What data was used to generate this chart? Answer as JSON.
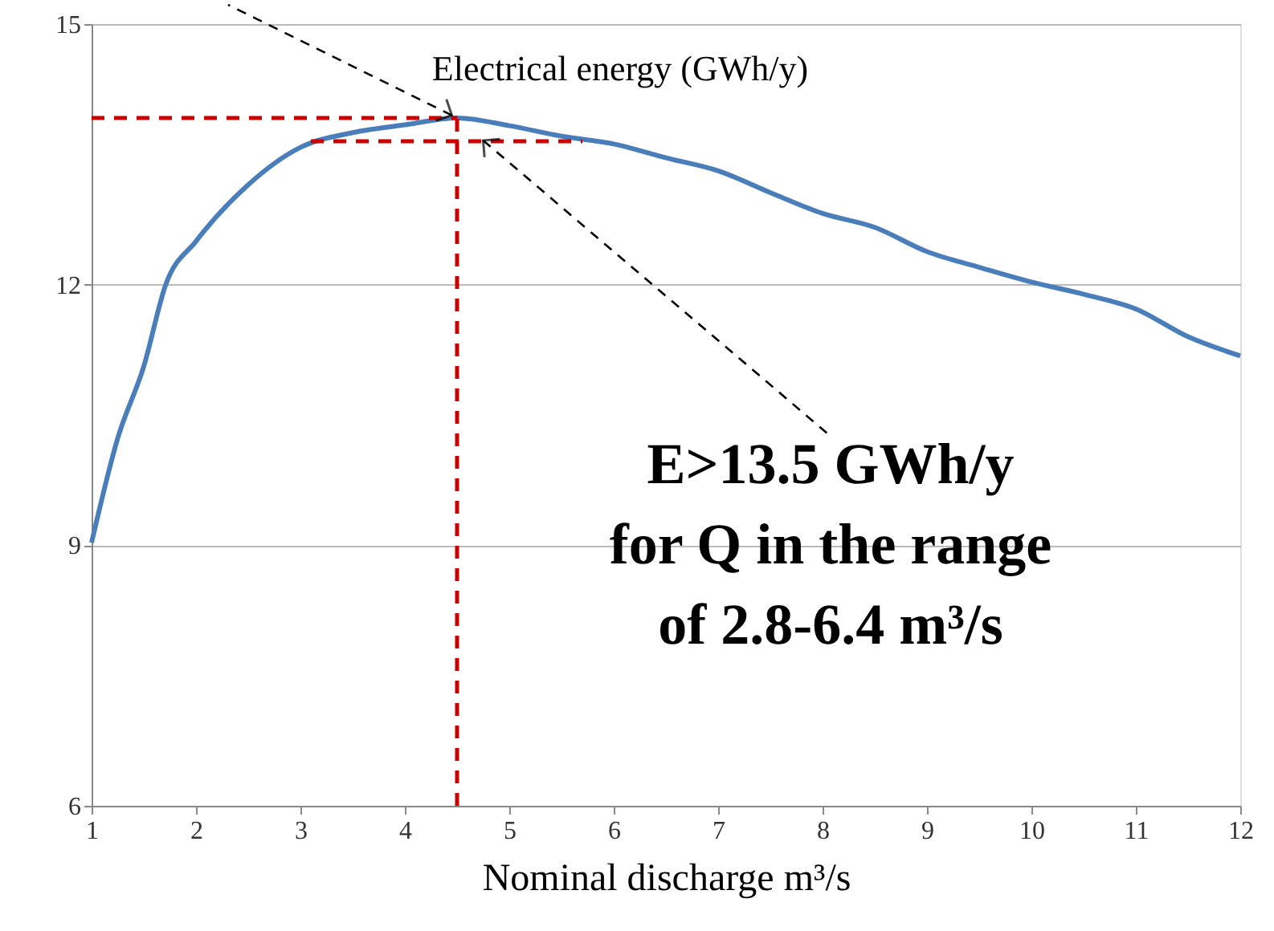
{
  "chart_data": {
    "type": "line",
    "xlabel": "Nominal discharge m³/s",
    "xlim": [
      1,
      12
    ],
    "xticks": [
      1,
      2,
      3,
      4,
      5,
      6,
      7,
      8,
      9,
      10,
      11,
      12
    ],
    "ylim": [
      6,
      15
    ],
    "yticks": [
      6,
      9,
      12,
      15
    ],
    "grid": "y",
    "marker": "none",
    "series": [
      {
        "color": "#4a7ebb",
        "line_style": "solid",
        "x": [
          1,
          1.25,
          1.5,
          1.71,
          2,
          2.5,
          3,
          3.5,
          4,
          4.5,
          5,
          5.5,
          6,
          6.5,
          7,
          7.5,
          8,
          8.5,
          9,
          9.5,
          10,
          10.5,
          11,
          11.5,
          12
        ],
        "values": [
          9.03,
          10.23,
          11.06,
          12.0,
          12.5,
          13.15,
          13.58,
          13.75,
          13.84,
          13.92,
          13.83,
          13.71,
          13.62,
          13.46,
          13.31,
          13.06,
          12.82,
          12.66,
          12.38,
          12.2,
          12.03,
          11.89,
          11.72,
          11.4,
          11.18
        ]
      },
      {
        "type": "line",
        "color": "#cc0000",
        "line_style": "dashed",
        "x": [
          1,
          4.5
        ],
        "values": [
          13.92,
          13.92
        ]
      },
      {
        "type": "line",
        "color": "#cc0000",
        "line_style": "dashed",
        "x": [
          4.5,
          4.5
        ],
        "values": [
          6,
          13.92
        ]
      },
      {
        "type": "line",
        "color": "#cc0000",
        "line_style": "dashed",
        "x": [
          3.1,
          5.7
        ],
        "values": [
          13.65,
          13.65
        ]
      }
    ],
    "annotations": [
      {
        "text": "Electrical energy (GWh/y)",
        "x": 4.45,
        "y": 13.95
      },
      {
        "text": "E>13.5 GWh/y\nfor Q in the range\nof 2.8-6.4 m³/s",
        "x": 4.75,
        "y": 13.66
      }
    ]
  }
}
